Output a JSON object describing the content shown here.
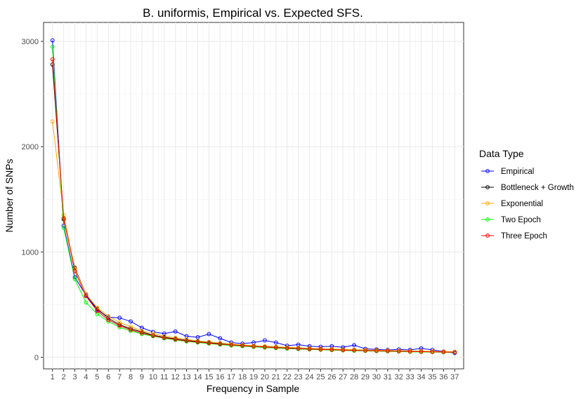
{
  "chart_data": {
    "type": "line",
    "title": "B. uniformis, Empirical vs. Expected SFS.",
    "xlabel": "Frequency in Sample",
    "ylabel": "Number of SNPs",
    "x": [
      1,
      2,
      3,
      4,
      5,
      6,
      7,
      8,
      9,
      10,
      11,
      12,
      13,
      14,
      15,
      16,
      17,
      18,
      19,
      20,
      21,
      22,
      23,
      24,
      25,
      26,
      27,
      28,
      29,
      30,
      31,
      32,
      33,
      34,
      35,
      36,
      37
    ],
    "xlim": [
      0.2,
      37.8
    ],
    "ylim": [
      -110,
      3180
    ],
    "yticks": [
      0,
      1000,
      2000,
      3000
    ],
    "ytick_labels": [
      "0",
      "1000",
      "2000",
      "3000"
    ],
    "grid": true,
    "legend_title": "Data Type",
    "legend_position": "right",
    "series": [
      {
        "name": "Empirical",
        "color": "#0000ff",
        "values": [
          3010,
          1250,
          760,
          590,
          450,
          380,
          375,
          340,
          280,
          240,
          225,
          245,
          200,
          190,
          220,
          180,
          140,
          130,
          140,
          160,
          140,
          110,
          120,
          105,
          100,
          105,
          95,
          115,
          80,
          75,
          70,
          75,
          70,
          85,
          70,
          55,
          40
        ]
      },
      {
        "name": "Bottleneck + Growth",
        "color": "#000000",
        "values": [
          2780,
          1310,
          850,
          600,
          460,
          370,
          310,
          270,
          240,
          210,
          190,
          175,
          160,
          150,
          140,
          130,
          120,
          112,
          105,
          100,
          95,
          90,
          85,
          82,
          78,
          75,
          72,
          70,
          67,
          65,
          63,
          61,
          59,
          57,
          55,
          53,
          50
        ]
      },
      {
        "name": "Exponential",
        "color": "#ffa500",
        "values": [
          2240,
          1350,
          840,
          600,
          470,
          390,
          330,
          290,
          250,
          225,
          200,
          185,
          170,
          155,
          145,
          135,
          125,
          118,
          110,
          105,
          100,
          95,
          90,
          86,
          82,
          78,
          75,
          72,
          69,
          67,
          65,
          62,
          60,
          58,
          56,
          54,
          52
        ]
      },
      {
        "name": "Two Epoch",
        "color": "#00ff00",
        "values": [
          2950,
          1230,
          740,
          520,
          410,
          340,
          285,
          250,
          220,
          200,
          180,
          165,
          150,
          140,
          130,
          120,
          112,
          105,
          98,
          92,
          87,
          82,
          78,
          74,
          71,
          68,
          65,
          62,
          60,
          58,
          56,
          54,
          52,
          50,
          49,
          47,
          46
        ]
      },
      {
        "name": "Three Epoch",
        "color": "#ff0000",
        "values": [
          2830,
          1320,
          820,
          580,
          440,
          355,
          300,
          260,
          230,
          205,
          185,
          170,
          155,
          145,
          135,
          125,
          117,
          110,
          103,
          97,
          92,
          87,
          82,
          78,
          74,
          71,
          68,
          66,
          63,
          61,
          59,
          57,
          55,
          53,
          51,
          50,
          48
        ]
      }
    ]
  }
}
